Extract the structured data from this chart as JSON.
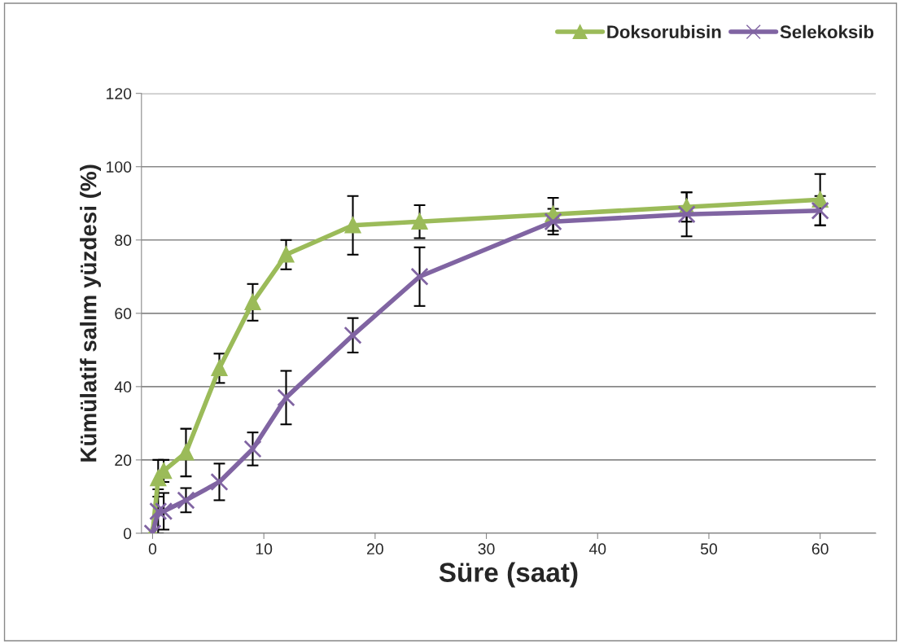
{
  "chart_data": {
    "type": "line",
    "xlabel": "Süre (saat)",
    "ylabel": "Kümülatif salım yüzdesi (%)",
    "x": [
      0,
      0.5,
      1,
      3,
      6,
      9,
      12,
      18,
      24,
      36,
      48,
      60
    ],
    "series": [
      {
        "name": "Doksorubisin",
        "color": "#9bbb59",
        "marker": "triangle",
        "values": [
          0,
          15,
          17,
          22,
          45,
          63,
          76,
          84,
          85,
          87,
          89,
          91
        ],
        "errors": [
          null,
          5,
          3,
          6.5,
          4,
          5,
          4,
          8,
          4.5,
          4.5,
          4,
          7
        ]
      },
      {
        "name": "Selekoksib",
        "color": "#8064a2",
        "marker": "cross",
        "values": [
          0,
          6,
          6,
          9,
          14,
          23,
          37,
          54,
          70,
          85,
          87,
          88
        ],
        "errors": [
          null,
          6,
          5,
          3.3,
          5,
          4.5,
          7.3,
          4.7,
          8,
          3.5,
          6,
          4
        ]
      }
    ],
    "xlim": [
      -1,
      65
    ],
    "xticks": [
      0,
      10,
      20,
      30,
      40,
      50,
      60
    ],
    "ylim": [
      0,
      120
    ],
    "yticks": [
      0,
      20,
      40,
      60,
      80,
      100,
      120
    ],
    "grid": "y",
    "legend": "top right",
    "line_style": "solid"
  }
}
